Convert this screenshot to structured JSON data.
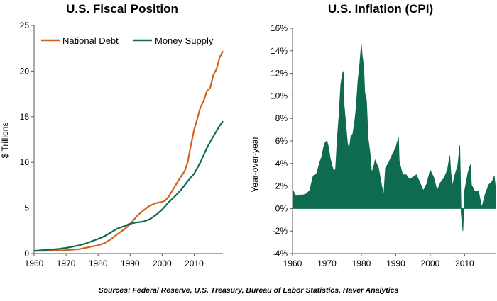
{
  "chart_data": [
    {
      "type": "line",
      "title": "U.S. Fiscal Position",
      "xlabel": "",
      "ylabel": "$ Trillions",
      "xlim": [
        1960,
        2019
      ],
      "ylim": [
        0,
        25
      ],
      "xticks": [
        1960,
        1970,
        1980,
        1990,
        2000,
        2010
      ],
      "yticks": [
        0,
        5,
        10,
        15,
        20,
        25
      ],
      "grid": false,
      "legend": "top-left",
      "series": [
        {
          "name": "National Debt",
          "color": "#d4621f",
          "x": [
            1960,
            1962,
            1964,
            1966,
            1968,
            1970,
            1972,
            1974,
            1976,
            1978,
            1980,
            1982,
            1984,
            1986,
            1988,
            1990,
            1992,
            1994,
            1996,
            1998,
            2000,
            2001,
            2002,
            2004,
            2006,
            2007,
            2008,
            2009,
            2010,
            2011,
            2012,
            2013,
            2014,
            2015,
            2016,
            2017,
            2018,
            2019
          ],
          "values": [
            0.29,
            0.3,
            0.31,
            0.33,
            0.35,
            0.37,
            0.43,
            0.48,
            0.62,
            0.77,
            0.91,
            1.14,
            1.57,
            2.13,
            2.6,
            3.23,
            4.06,
            4.69,
            5.22,
            5.53,
            5.67,
            5.81,
            6.23,
            7.38,
            8.51,
            9.01,
            10.02,
            11.91,
            13.56,
            14.79,
            16.07,
            16.74,
            17.82,
            18.15,
            19.57,
            20.24,
            21.52,
            22.2
          ]
        },
        {
          "name": "Money Supply",
          "color": "#0e6b4f",
          "x": [
            1960,
            1962,
            1964,
            1966,
            1968,
            1970,
            1972,
            1974,
            1976,
            1978,
            1980,
            1982,
            1984,
            1986,
            1988,
            1990,
            1992,
            1994,
            1996,
            1998,
            2000,
            2002,
            2004,
            2006,
            2008,
            2010,
            2012,
            2014,
            2016,
            2018,
            2019
          ],
          "values": [
            0.3,
            0.35,
            0.4,
            0.46,
            0.53,
            0.62,
            0.75,
            0.9,
            1.09,
            1.35,
            1.6,
            1.9,
            2.31,
            2.73,
            2.99,
            3.28,
            3.42,
            3.49,
            3.74,
            4.21,
            4.81,
            5.61,
            6.29,
            7.02,
            7.94,
            8.75,
            10.03,
            11.59,
            12.86,
            14.03,
            14.5
          ]
        }
      ]
    },
    {
      "type": "area",
      "title": "U.S. Inflation (CPI)",
      "xlabel": "",
      "ylabel": "Year-over-year",
      "xlim": [
        1960,
        2019
      ],
      "ylim": [
        -4,
        16
      ],
      "xticks": [
        1960,
        1970,
        1980,
        1990,
        2000,
        2010
      ],
      "yticks": [
        -4,
        -2,
        0,
        2,
        4,
        6,
        8,
        10,
        12,
        14,
        16
      ],
      "ytick_labels": [
        "-4%",
        "-2%",
        "0%",
        "2%",
        "4%",
        "6%",
        "8%",
        "10%",
        "12%",
        "14%",
        "16%"
      ],
      "grid": false,
      "legend": "none",
      "series": [
        {
          "name": "",
          "color": "#0e6b4f",
          "x": [
            1960,
            1961,
            1962,
            1963,
            1964,
            1965,
            1966,
            1967,
            1968,
            1968.5,
            1969,
            1969.5,
            1970,
            1970.5,
            1971,
            1971.5,
            1972,
            1972.5,
            1973,
            1973.5,
            1974,
            1974.5,
            1974.9,
            1975,
            1975.5,
            1976,
            1976.5,
            1977,
            1977.5,
            1978,
            1978.5,
            1979,
            1979.5,
            1980,
            1980.3,
            1980.7,
            1981,
            1981.5,
            1982,
            1982.5,
            1983,
            1983.5,
            1984,
            1985,
            1986,
            1986.5,
            1987,
            1988,
            1989,
            1990,
            1990.8,
            1991,
            1992,
            1993,
            1994,
            1995,
            1996,
            1997,
            1998,
            1999,
            2000,
            2001,
            2002,
            2003,
            2004,
            2005,
            2005.7,
            2006,
            2006.5,
            2007,
            2008,
            2008.6,
            2009,
            2009.5,
            2010,
            2011,
            2011.7,
            2012,
            2013,
            2014,
            2015,
            2016,
            2017,
            2018,
            2018.6,
            2019
          ],
          "values": [
            1.7,
            1.1,
            1.2,
            1.2,
            1.3,
            1.6,
            2.9,
            3.1,
            4.2,
            4.6,
            5.4,
            5.9,
            6.0,
            5.4,
            4.4,
            3.8,
            3.3,
            3.5,
            6.2,
            8.2,
            11.0,
            12.0,
            12.2,
            9.2,
            7.5,
            5.7,
            5.3,
            6.5,
            6.6,
            7.6,
            9.0,
            11.3,
            12.7,
            14.6,
            13.5,
            12.6,
            10.3,
            9.6,
            6.2,
            5.0,
            3.2,
            3.6,
            4.3,
            3.6,
            1.9,
            1.2,
            3.6,
            4.1,
            4.8,
            5.4,
            6.3,
            4.2,
            3.0,
            3.0,
            2.6,
            2.8,
            3.0,
            2.3,
            1.6,
            2.2,
            3.4,
            2.8,
            1.6,
            2.3,
            2.7,
            3.4,
            4.7,
            3.2,
            2.0,
            2.8,
            3.8,
            5.6,
            -0.4,
            -2.0,
            1.6,
            3.2,
            3.9,
            2.1,
            1.5,
            1.6,
            0.1,
            1.3,
            2.1,
            2.4,
            2.9,
            1.8
          ]
        }
      ]
    }
  ],
  "footer": {
    "source": "Sources: Federal Reserve, U.S. Treasury, Bureau of Labor Statistics, Haver Analytics"
  }
}
